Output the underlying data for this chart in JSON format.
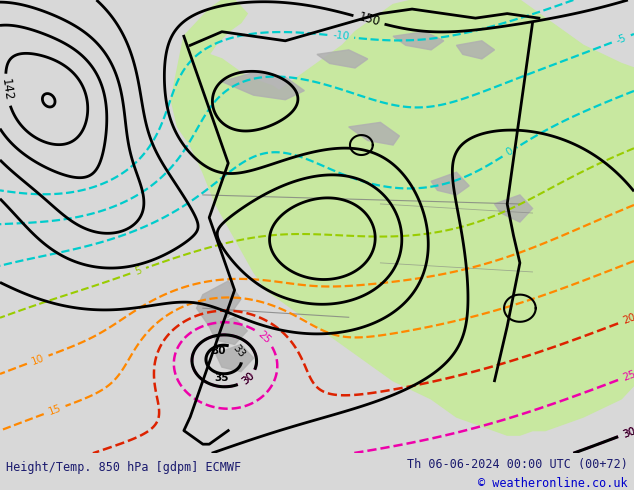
{
  "title_left": "Height/Temp. 850 hPa [gdpm] ECMWF",
  "title_right": "Th 06-06-2024 00:00 UTC (00+72)",
  "copyright": "© weatheronline.co.uk",
  "bg_color": "#d8d8d8",
  "map_bg": "#e8e8e8",
  "land_green": "#c8e8a0",
  "land_gray": "#b0b0b0",
  "bottom_bar_color": "#d8d8d8",
  "text_color": "#1a1a6e",
  "copyright_color": "#0000cc",
  "figsize": [
    6.34,
    4.9
  ],
  "dpi": 100,
  "height_color": "#000000",
  "cold_color": "#00cccc",
  "lime_color": "#99cc00",
  "orange_color": "#ff8800",
  "red_color": "#dd2200",
  "magenta_color": "#ee00aa",
  "hot_black_color": "#000000"
}
